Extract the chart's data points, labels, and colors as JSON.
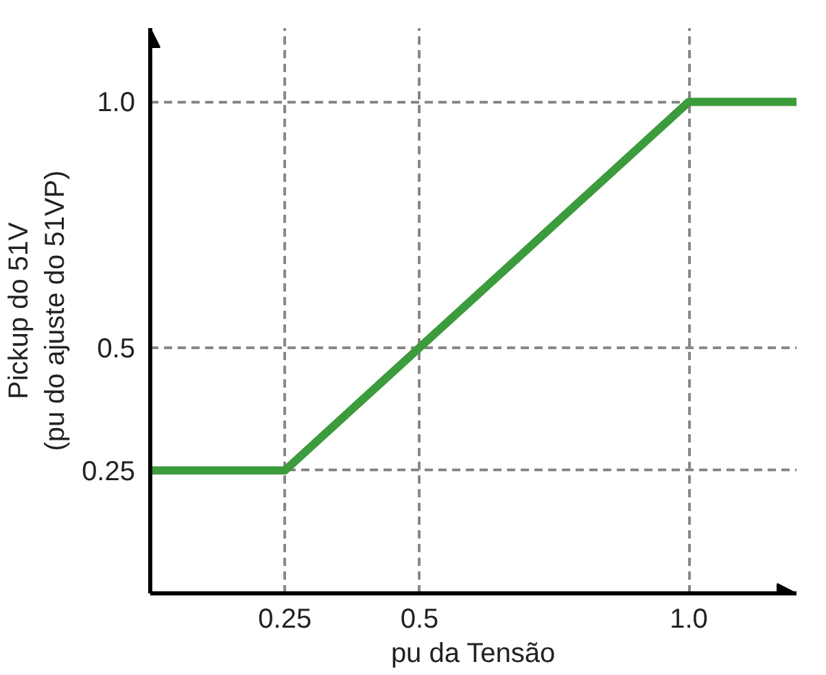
{
  "chart_data": {
    "type": "line",
    "xlabel": "pu da Tensão",
    "ylabel": "Pickup do 51V\n(pu do ajuste do 51VP)",
    "x": [
      0,
      0.25,
      1.0,
      1.2
    ],
    "series": [
      {
        "color": "#3c9b3c",
        "values": [
          0.25,
          0.25,
          1.0,
          1.0
        ]
      }
    ],
    "xlim": [
      0,
      1.2
    ],
    "ylim": [
      0,
      1.15
    ],
    "xticks": [
      0.25,
      0.5,
      {
        "value": 1,
        "label": "1.0"
      }
    ],
    "yticks": [
      0.25,
      0.5,
      {
        "value": 1,
        "label": "1.0"
      }
    ],
    "grid": true
  }
}
